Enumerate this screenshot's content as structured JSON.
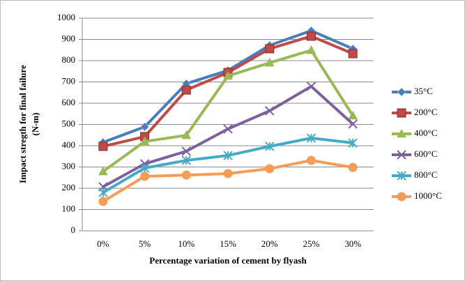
{
  "chart_data": {
    "type": "line",
    "x_label": "Percentage variation  of cement by flyash",
    "y_label": [
      "Impact stregth for final failure",
      "(N-m)"
    ],
    "categories": [
      "0%",
      "5%",
      "10%",
      "15%",
      "20%",
      "25%",
      "30%"
    ],
    "ylim": [
      0,
      1000
    ],
    "yticks": [
      0,
      100,
      200,
      300,
      400,
      500,
      600,
      700,
      800,
      900,
      1000
    ],
    "grid": true,
    "legend": "right",
    "series": [
      {
        "name": "35°C",
        "color": "#4a7ebb",
        "marker": "diamond",
        "values": [
          416,
          489,
          692,
          754,
          872,
          941,
          856
        ]
      },
      {
        "name": "200°C",
        "color": "#be4b48",
        "marker": "square",
        "values": [
          397,
          443,
          662,
          744,
          856,
          915,
          833
        ]
      },
      {
        "name": "400°C",
        "color": "#98b954",
        "marker": "triangle",
        "values": [
          279,
          420,
          449,
          728,
          790,
          849,
          541
        ]
      },
      {
        "name": "600°C",
        "color": "#7d60a0",
        "marker": "x",
        "values": [
          207,
          315,
          374,
          479,
          564,
          679,
          502
        ]
      },
      {
        "name": "800°C",
        "color": "#46aac5",
        "marker": "star",
        "values": [
          180,
          295,
          331,
          354,
          397,
          436,
          413
        ]
      },
      {
        "name": "1000°C",
        "color": "#f59d56",
        "marker": "circle",
        "values": [
          138,
          256,
          262,
          269,
          292,
          331,
          298
        ]
      }
    ]
  }
}
